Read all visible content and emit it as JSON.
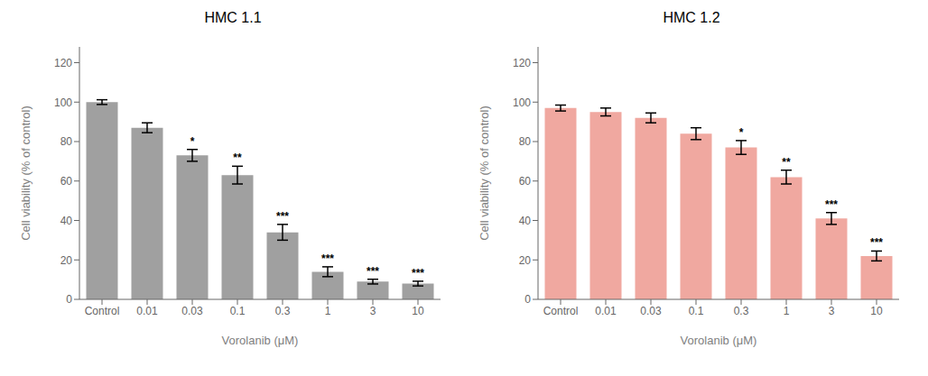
{
  "chart_data": [
    {
      "type": "bar",
      "title": "HMC 1.1",
      "categories": [
        "Control",
        "0.01",
        "0.03",
        "0.1",
        "0.3",
        "1",
        "3",
        "10"
      ],
      "values": [
        100,
        87,
        73,
        63,
        34,
        14,
        9,
        8
      ],
      "errors": [
        1.2,
        2.5,
        3.0,
        4.5,
        4.0,
        2.5,
        1.2,
        1.2
      ],
      "annotations": [
        null,
        null,
        "*",
        "**",
        "***",
        "***",
        "***",
        "***"
      ],
      "color": "#a0a0a0",
      "ylabel": "Cell viability (% of control)",
      "xlabel": "Vorolanib (μM)",
      "ylim": [
        0,
        128
      ],
      "yticks": [
        0,
        20,
        40,
        60,
        80,
        100,
        120
      ],
      "grid": false
    },
    {
      "type": "bar",
      "title": "HMC 1.2",
      "categories": [
        "Control",
        "0.01",
        "0.03",
        "0.1",
        "0.3",
        "1",
        "3",
        "10"
      ],
      "values": [
        97,
        95,
        92,
        84,
        77,
        62,
        41,
        22
      ],
      "errors": [
        1.5,
        2.0,
        2.5,
        3.0,
        3.5,
        3.5,
        3.0,
        2.5
      ],
      "annotations": [
        null,
        null,
        null,
        null,
        "*",
        "**",
        "***",
        "***"
      ],
      "color": "#f0a8a0",
      "ylabel": "Cell viability (% of control)",
      "xlabel": "Vorolanib (μM)",
      "ylim": [
        0,
        128
      ],
      "yticks": [
        0,
        20,
        40,
        60,
        80,
        100,
        120
      ],
      "grid": false
    }
  ]
}
